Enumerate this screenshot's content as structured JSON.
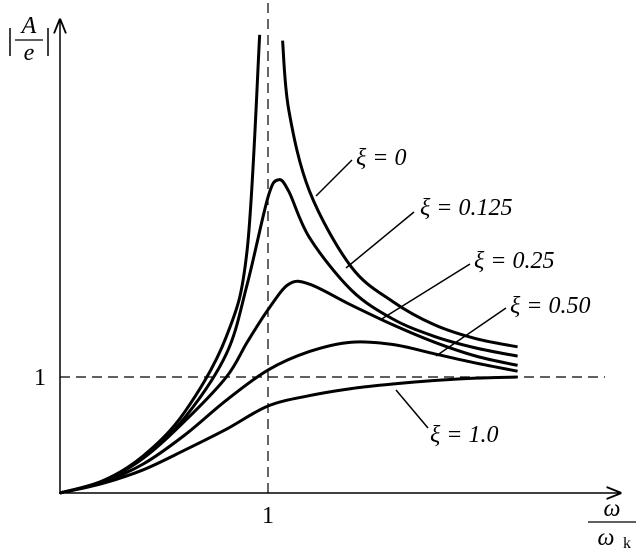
{
  "chart_data": {
    "type": "line",
    "ylabel": {
      "numerator": "A",
      "denominator": "e"
    },
    "xlabel": {
      "numerator": "ω",
      "denominator": "ω",
      "subscript": "k"
    },
    "xlim": [
      0,
      2.67
    ],
    "ylim": [
      0,
      4.08
    ],
    "xticks": [
      1
    ],
    "yticks": [
      1
    ],
    "grid": true,
    "color": "#000000",
    "series": [
      {
        "name": "ξ = 0",
        "x": [
          0,
          0.2,
          0.4,
          0.6,
          0.8,
          0.9,
          0.96,
          1.0,
          1.07,
          1.1,
          1.2,
          1.4,
          1.6,
          1.8,
          2.0,
          2.2
        ],
        "values": [
          0,
          0.1,
          0.32,
          0.7,
          1.35,
          2.1,
          3.95,
          null,
          3.9,
          3.3,
          2.6,
          1.95,
          1.65,
          1.45,
          1.33,
          1.26
        ]
      },
      {
        "name": "ξ = 0.125",
        "x": [
          0,
          0.2,
          0.4,
          0.6,
          0.8,
          0.9,
          1.0,
          1.05,
          1.1,
          1.2,
          1.4,
          1.6,
          1.8,
          2.0,
          2.2
        ],
        "values": [
          0,
          0.1,
          0.3,
          0.65,
          1.2,
          1.8,
          2.55,
          2.7,
          2.6,
          2.2,
          1.75,
          1.5,
          1.35,
          1.25,
          1.18
        ]
      },
      {
        "name": "ξ = 0.25",
        "x": [
          0,
          0.2,
          0.4,
          0.6,
          0.8,
          0.9,
          1.0,
          1.1,
          1.2,
          1.4,
          1.6,
          1.8,
          2.0,
          2.2
        ],
        "values": [
          0,
          0.1,
          0.3,
          0.62,
          1.0,
          1.3,
          1.58,
          1.8,
          1.8,
          1.62,
          1.45,
          1.3,
          1.18,
          1.1
        ]
      },
      {
        "name": "ξ = 0.50",
        "x": [
          0,
          0.2,
          0.4,
          0.6,
          0.8,
          1.0,
          1.2,
          1.4,
          1.6,
          1.8,
          2.0,
          2.2
        ],
        "values": [
          0,
          0.09,
          0.25,
          0.5,
          0.8,
          1.06,
          1.22,
          1.3,
          1.28,
          1.2,
          1.12,
          1.05
        ]
      },
      {
        "name": "ξ = 1.0",
        "x": [
          0,
          0.2,
          0.4,
          0.6,
          0.8,
          1.0,
          1.2,
          1.4,
          1.6,
          1.8,
          2.0,
          2.2
        ],
        "values": [
          0,
          0.08,
          0.2,
          0.37,
          0.55,
          0.75,
          0.84,
          0.9,
          0.94,
          0.97,
          0.99,
          1.0
        ]
      }
    ]
  }
}
